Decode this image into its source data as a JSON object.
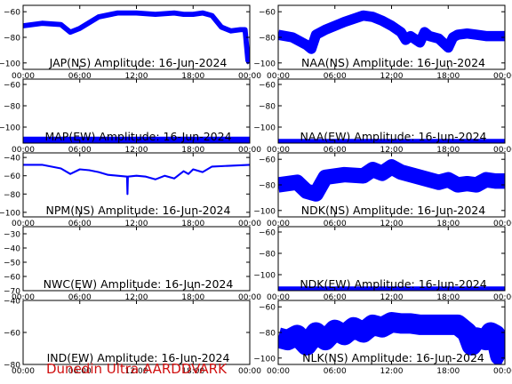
{
  "footer": "Dunedin Ultra AARDDVARK",
  "colors": {
    "trace": "#0000ff",
    "axes": "#000000",
    "footer": "#d01010"
  },
  "chart_data": [
    {
      "type": "line",
      "title": "JAP(NS) Amplitude: 16-Jun-2024",
      "xticks": [
        "00:00",
        "06:00",
        "12:00",
        "18:00",
        "00:00"
      ],
      "xlim": [
        0,
        24
      ],
      "ylim": [
        -105,
        -55
      ],
      "yticks": [
        -100,
        -80,
        -60
      ],
      "series": [
        {
          "x": [
            0,
            2,
            4,
            5,
            6,
            8,
            10,
            12,
            14,
            16,
            17,
            18,
            19,
            20,
            21,
            22,
            23,
            23.5,
            23.8,
            24
          ],
          "y": [
            -71,
            -69,
            -70,
            -76,
            -73,
            -64,
            -61,
            -61,
            -62,
            -61,
            -62,
            -62,
            -61,
            -63,
            -72,
            -75,
            -74,
            -74,
            -98,
            -100
          ],
          "band": 2
        }
      ]
    },
    {
      "type": "line",
      "title": "NAA(NS) Amplitude: 16-Jun-2024",
      "xticks": [
        "00:00",
        "06:00",
        "12:00",
        "18:00",
        "00:00"
      ],
      "xlim": [
        0,
        24
      ],
      "ylim": [
        -105,
        -55
      ],
      "yticks": [
        -100,
        -80,
        -60
      ],
      "series": [
        {
          "x": [
            0,
            1.5,
            3,
            3.5,
            4,
            5,
            7,
            9,
            10,
            11,
            12,
            13,
            13.5,
            14,
            15,
            15.5,
            16,
            17,
            18,
            18.5,
            19,
            20,
            21,
            22,
            24
          ],
          "y": [
            -78,
            -80,
            -86,
            -89,
            -78,
            -74,
            -68,
            -63,
            -64,
            -67,
            -71,
            -76,
            -82,
            -79,
            -84,
            -76,
            -79,
            -81,
            -88,
            -80,
            -78,
            -77,
            -78,
            -79,
            -79
          ],
          "band": 4
        }
      ]
    },
    {
      "type": "line",
      "title": "MAP(EW) Amplitude: 16-Jun-2024",
      "xticks": [
        "00:00",
        "06:00",
        "12:00",
        "18:00",
        "00:00"
      ],
      "xlim": [
        0,
        24
      ],
      "ylim": [
        -115,
        -55
      ],
      "yticks": [
        -100,
        -80,
        -60
      ],
      "series": [
        {
          "x": [
            0,
            24
          ],
          "y": [
            -112,
            -112
          ],
          "band": 3
        }
      ]
    },
    {
      "type": "line",
      "title": "NAA(EW) Amplitude: 16-Jun-2024",
      "xticks": [
        "00:00",
        "06:00",
        "12:00",
        "18:00",
        "00:00"
      ],
      "xlim": [
        0,
        24
      ],
      "ylim": [
        -115,
        -55
      ],
      "yticks": [
        -100,
        -80,
        -60
      ],
      "series": [
        {
          "x": [
            0,
            24
          ],
          "y": [
            -113,
            -113
          ],
          "band": 2
        }
      ]
    },
    {
      "type": "line",
      "title": "NPM(NS) Amplitude: 16-Jun-2024",
      "xticks": [
        "00:00",
        "06:00",
        "12:00",
        "18:00",
        "00:00"
      ],
      "xlim": [
        0,
        24
      ],
      "ylim": [
        -105,
        -35
      ],
      "yticks": [
        -100,
        -80,
        -60,
        -40
      ],
      "series": [
        {
          "x": [
            0,
            2,
            4,
            5,
            6,
            7,
            8,
            9,
            10,
            11,
            11.05,
            11.1,
            12,
            13,
            14,
            15,
            16,
            17,
            17.5,
            18,
            19,
            20,
            22,
            24
          ],
          "y": [
            -48,
            -48,
            -52,
            -58,
            -53,
            -54,
            -56,
            -59,
            -60,
            -61,
            -80,
            -61,
            -60,
            -61,
            -64,
            -60,
            -63,
            -55,
            -58,
            -53,
            -56,
            -50,
            -49,
            -48
          ],
          "band": 1
        }
      ]
    },
    {
      "type": "line",
      "title": "NDK(NS) Amplitude: 16-Jun-2024",
      "xticks": [
        "00:00",
        "06:00",
        "12:00",
        "18:00",
        "00:00"
      ],
      "xlim": [
        0,
        24
      ],
      "ylim": [
        -105,
        -55
      ],
      "yticks": [
        -100,
        -80,
        -60
      ],
      "series": [
        {
          "x": [
            0,
            2,
            3,
            4,
            5,
            7,
            9,
            10,
            11,
            12,
            13,
            15,
            17,
            18,
            19,
            20,
            21,
            22,
            23,
            24
          ],
          "y": [
            -80,
            -78,
            -85,
            -87,
            -74,
            -72,
            -73,
            -68,
            -71,
            -66,
            -70,
            -74,
            -78,
            -76,
            -80,
            -79,
            -80,
            -76,
            -77,
            -77
          ],
          "band": 6
        }
      ]
    },
    {
      "type": "line",
      "title": "NWC(EW) Amplitude: 16-Jun-2024",
      "xticks": [
        "00:00",
        "06:00",
        "12:00",
        "18:00",
        "00:00"
      ],
      "xlim": [
        0,
        24
      ],
      "ylim": [
        -70,
        -25
      ],
      "yticks": [
        -70,
        -60,
        -50,
        -40,
        -30
      ],
      "series": []
    },
    {
      "type": "line",
      "title": "NDK(EW) Amplitude: 16-Jun-2024",
      "xticks": [
        "00:00",
        "06:00",
        "12:00",
        "18:00",
        "00:00"
      ],
      "xlim": [
        0,
        24
      ],
      "ylim": [
        -115,
        -55
      ],
      "yticks": [
        -100,
        -80,
        -60
      ],
      "series": [
        {
          "x": [
            0,
            24
          ],
          "y": [
            -113,
            -113
          ],
          "band": 2
        }
      ]
    },
    {
      "type": "line",
      "title": "IND(EW) Amplitude: 16-Jun-2024",
      "xticks": [
        "00:00",
        "06:00",
        "12:00",
        "18:00",
        "00:00"
      ],
      "xlim": [
        0,
        24
      ],
      "ylim": [
        -80,
        -40
      ],
      "yticks": [
        -80,
        -60,
        -40
      ],
      "series": []
    },
    {
      "type": "line",
      "title": "NLK(NS) Amplitude: 16-Jun-2024",
      "xticks": [
        "00:00",
        "06:00",
        "12:00",
        "18:00",
        "00:00"
      ],
      "xlim": [
        0,
        24
      ],
      "ylim": [
        -105,
        -55
      ],
      "yticks": [
        -100,
        -80,
        -60
      ],
      "series": [
        {
          "x": [
            0,
            1,
            2,
            3,
            4,
            5,
            6,
            7,
            8,
            9,
            10,
            11,
            12,
            13,
            14,
            15,
            16,
            17,
            18,
            19,
            20,
            20.5,
            21,
            22,
            22.5,
            23,
            23.5,
            24
          ],
          "y": [
            -84,
            -86,
            -82,
            -90,
            -80,
            -86,
            -78,
            -82,
            -76,
            -80,
            -74,
            -76,
            -72,
            -73,
            -73,
            -74,
            -74,
            -74,
            -74,
            -74,
            -80,
            -90,
            -84,
            -86,
            -80,
            -82,
            -98,
            -100
          ],
          "band": 8
        }
      ]
    }
  ]
}
